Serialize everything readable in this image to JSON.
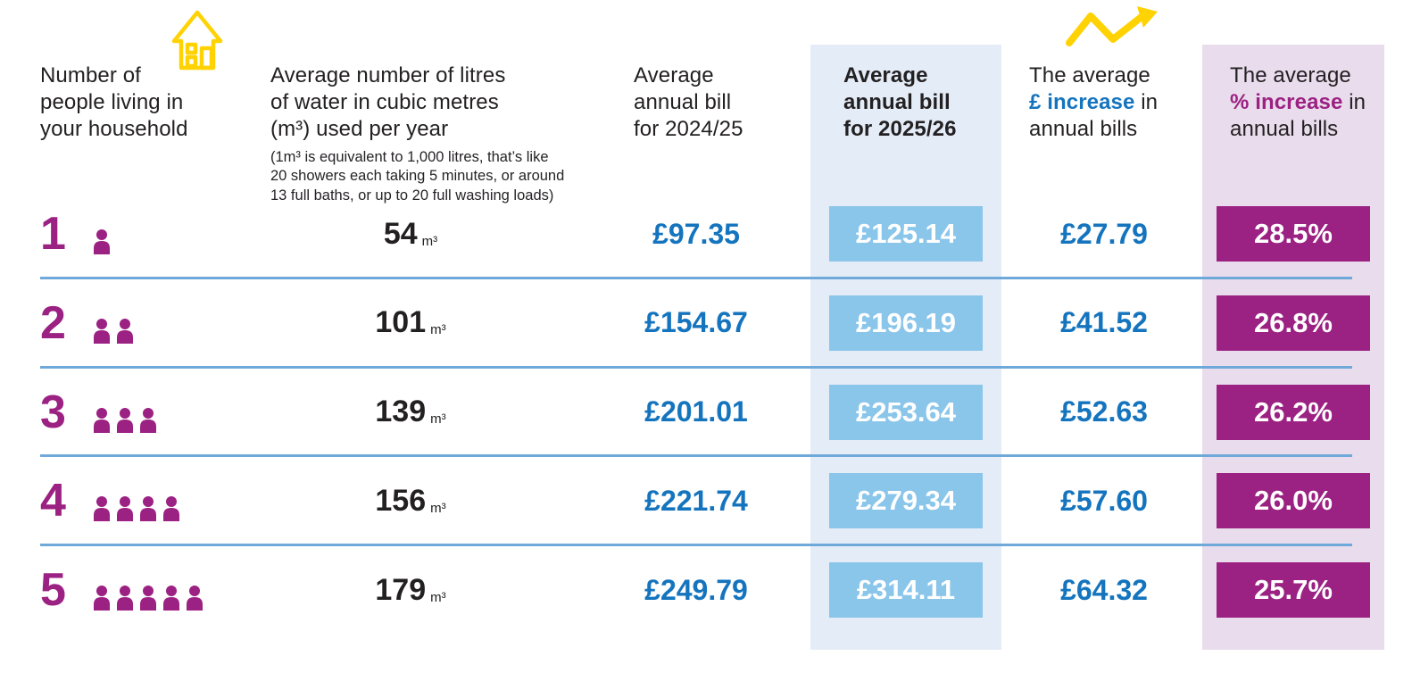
{
  "colors": {
    "magenta": "#9B2182",
    "blue": "#1474BE",
    "boxBlue": "#8AC5EA",
    "colBlue": "#E4EDF7",
    "colPurple": "#E9DCEC",
    "yellow": "#FFD204",
    "ink": "#232022",
    "divider": "#6FA9DA"
  },
  "icons": {
    "house": "house-outline-icon",
    "trend": "upward-zigzag-arrow-icon",
    "person": "person-silhouette-icon"
  },
  "header": {
    "col_people": "Number of\npeople living in\nyour household",
    "col_usage": "Average number of litres\nof water in cubic metres\n(m³) used per year",
    "col_usage_note": "(1m³ is equivalent to 1,000 litres, that’s like\n20 showers each taking 5 minutes, or around\n13 full baths, or up to 20 full washing loads)",
    "col_bill_2024": "Average\nannual bill\nfor 2024/25",
    "col_bill_2025": "Average\nannual bill\nfor 2025/26",
    "col_increase_pounds": {
      "prefix": "The average\n",
      "highlight": "£ increase",
      "suffix": " in\nannual bills"
    },
    "col_increase_percent": {
      "prefix": "The average\n",
      "highlight": "% increase",
      "suffix": " in\nannual bills"
    }
  },
  "unit": "m³",
  "rows": [
    {
      "people": 1,
      "usage": "54",
      "bill_2024": "£97.35",
      "bill_2025": "£125.14",
      "increase_pounds": "£27.79",
      "increase_percent": "28.5%"
    },
    {
      "people": 2,
      "usage": "101",
      "bill_2024": "£154.67",
      "bill_2025": "£196.19",
      "increase_pounds": "£41.52",
      "increase_percent": "26.8%"
    },
    {
      "people": 3,
      "usage": "139",
      "bill_2024": "£201.01",
      "bill_2025": "£253.64",
      "increase_pounds": "£52.63",
      "increase_percent": "26.2%"
    },
    {
      "people": 4,
      "usage": "156",
      "bill_2024": "£221.74",
      "bill_2025": "£279.34",
      "increase_pounds": "£57.60",
      "increase_percent": "26.0%"
    },
    {
      "people": 5,
      "usage": "179",
      "bill_2024": "£249.79",
      "bill_2025": "£314.11",
      "increase_pounds": "£64.32",
      "increase_percent": "25.7%"
    }
  ],
  "chart_data": {
    "type": "table",
    "columns": [
      "Number of people living in your household",
      "Average number of litres of water in cubic metres (m³) used per year",
      "Average annual bill for 2024/25",
      "Average annual bill for 2025/26",
      "The average £ increase in annual bills",
      "The average % increase in annual bills"
    ],
    "rows": [
      [
        "1",
        "54 m³",
        "£97.35",
        "£125.14",
        "£27.79",
        "28.5%"
      ],
      [
        "2",
        "101 m³",
        "£154.67",
        "£196.19",
        "£41.52",
        "26.8%"
      ],
      [
        "3",
        "139 m³",
        "£201.01",
        "£253.64",
        "£52.63",
        "26.2%"
      ],
      [
        "4",
        "156 m³",
        "£221.74",
        "£279.34",
        "£57.60",
        "26.0%"
      ],
      [
        "5",
        "179 m³",
        "£249.79",
        "£314.11",
        "£64.32",
        "25.7%"
      ]
    ],
    "footnote": "(1m³ is equivalent to 1,000 litres, that’s like 20 showers each taking 5 minutes, or around 13 full baths, or up to 20 full washing loads)",
    "layout": {
      "highlighted_columns": [
        "Average annual bill for 2025/26",
        "The average % increase in annual bills"
      ],
      "grid": "horizontal dividers between rows"
    }
  }
}
